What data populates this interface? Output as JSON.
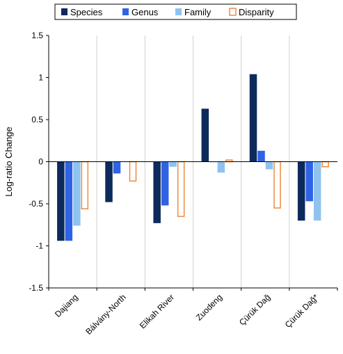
{
  "chart_data": {
    "type": "bar",
    "ylabel": "Log-ratio Change",
    "xlabel": "",
    "ylim": [
      -1.5,
      1.5
    ],
    "yticks": [
      "-1.5",
      "-1",
      "-0.5",
      "0",
      "0.5",
      "1",
      "1.5"
    ],
    "categories": [
      "Dajiang",
      "Bálvány-North",
      "Elikah River",
      "Zuodeng",
      "Çürük Dağ",
      "Çürük Dağ*"
    ],
    "legend_position": "top",
    "grid": "vertical separators between categories",
    "series": [
      {
        "name": "Species",
        "color": "#0d2a5c",
        "style": "filled",
        "values": [
          -0.94,
          -0.48,
          -0.73,
          0.63,
          1.04,
          -0.7
        ]
      },
      {
        "name": "Genus",
        "color": "#2f63e6",
        "style": "filled",
        "values": [
          -0.94,
          -0.14,
          -0.52,
          0,
          0.13,
          -0.47
        ]
      },
      {
        "name": "Family",
        "color": "#8ec3f0",
        "style": "filled",
        "values": [
          -0.76,
          0,
          -0.06,
          -0.13,
          -0.09,
          -0.7
        ]
      },
      {
        "name": "Disparity",
        "color": "#f08a3c",
        "style": "outline",
        "values": [
          -0.56,
          -0.23,
          -0.65,
          0.02,
          -0.55,
          -0.06
        ]
      }
    ]
  }
}
